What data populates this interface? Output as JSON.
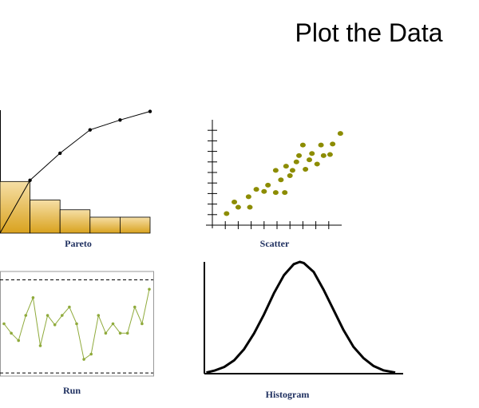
{
  "title": "Plot the Data",
  "chart_data": [
    {
      "type": "pareto",
      "title": "Pareto",
      "values": [
        42,
        27,
        19,
        13,
        13
      ],
      "cumulative": [
        43,
        65,
        84,
        92,
        99
      ],
      "ylim": [
        0,
        100
      ],
      "color": "#e0b44a",
      "line_color": "#000000"
    },
    {
      "type": "scatter",
      "title": "Scatter",
      "x": [
        1.1,
        1.7,
        2.0,
        2.8,
        2.9,
        3.4,
        4.0,
        4.3,
        4.9,
        4.9,
        5.3,
        5.6,
        5.7,
        6.0,
        6.2,
        6.5,
        6.7,
        7.0,
        7.2,
        7.5,
        7.7,
        8.1,
        8.4,
        8.6,
        9.1,
        9.3,
        9.9
      ],
      "values": [
        1.1,
        2.2,
        1.7,
        2.7,
        1.7,
        3.4,
        3.2,
        3.8,
        3.1,
        5.2,
        4.3,
        3.1,
        5.6,
        4.7,
        5.2,
        6.0,
        6.6,
        7.6,
        5.3,
        6.2,
        6.8,
        5.8,
        7.6,
        6.6,
        6.7,
        7.7,
        8.7
      ],
      "xlim": [
        0,
        10
      ],
      "ylim": [
        0,
        10
      ],
      "xticks": [
        1,
        2,
        3,
        4,
        5,
        6,
        7,
        8,
        9
      ],
      "yticks": [
        1,
        2,
        3,
        4,
        5,
        6,
        7,
        8,
        9
      ],
      "color": "#8c8c00"
    },
    {
      "type": "run",
      "title": "Run",
      "values": [
        50,
        41,
        34,
        58,
        75,
        29,
        58,
        49,
        58,
        66,
        50,
        16,
        21,
        58,
        41,
        50,
        41,
        41,
        66,
        50,
        83
      ],
      "limits": [
        3,
        92
      ],
      "ylim": [
        0,
        100
      ],
      "color": "#8faa3b"
    },
    {
      "type": "line",
      "title": "Histogram",
      "x": [
        0.1,
        0.5,
        1.0,
        1.5,
        2.0,
        2.5,
        3.0,
        3.5,
        4.0,
        4.5,
        4.8,
        5.0,
        5.5,
        6.0,
        6.5,
        7.0,
        7.5,
        8.0,
        8.5,
        9.0,
        9.6
      ],
      "values": [
        1,
        2.7,
        6,
        12,
        22,
        36,
        53,
        72,
        88,
        98,
        100,
        99,
        91,
        75,
        57,
        39,
        24,
        14,
        7,
        3,
        1
      ],
      "xlim": [
        0,
        10
      ],
      "ylim": [
        0,
        100
      ],
      "color": "#000000"
    }
  ]
}
